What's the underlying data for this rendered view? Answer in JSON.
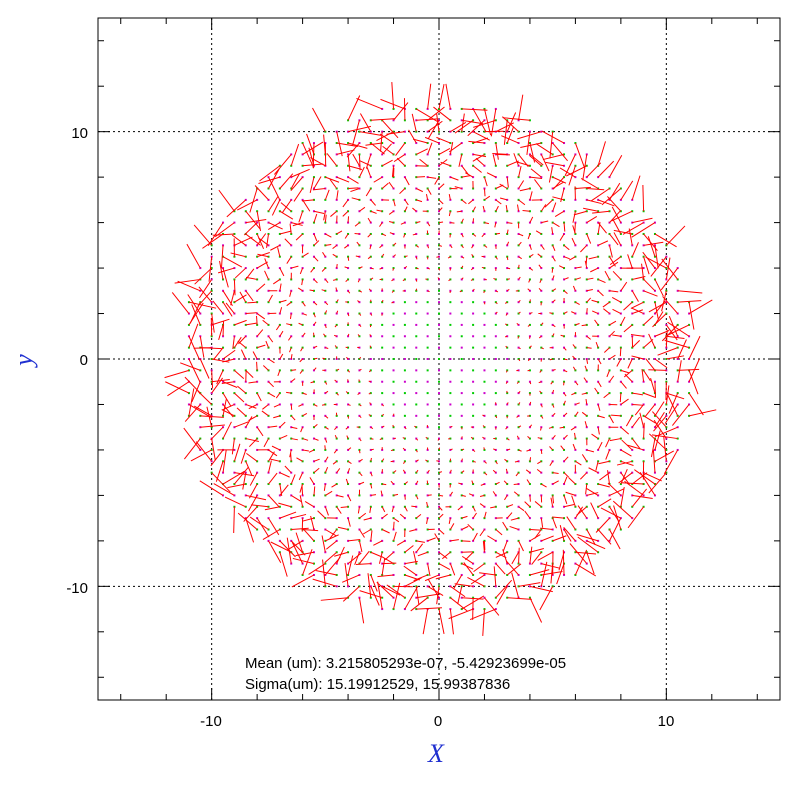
{
  "chart_data": {
    "type": "scatter",
    "subtype": "vector-field",
    "title": "",
    "xlabel": "X",
    "ylabel": "y",
    "xlim": [
      -15,
      15
    ],
    "ylim": [
      -15,
      15
    ],
    "x_ticks": [
      -10,
      0,
      10
    ],
    "y_ticks": [
      -10,
      0,
      10
    ],
    "x_tick_labels": [
      "-10",
      "0",
      "10"
    ],
    "y_tick_labels": [
      "-10",
      "0",
      "10"
    ],
    "grid": "dotted lines at -10, 0, 10",
    "field": {
      "grid_spacing": 0.5,
      "disk_radius": 11.3,
      "description": "Residual displacement vectors on a regular grid inside a circular field; vectors are tiny near the center and grow toward the rim."
    },
    "stats": {
      "mean_line": "Mean (um): 3.215805293e-07, -5.42923699e-05",
      "sigma_line": "Sigma(um): 15.19912529, 15.99387836"
    },
    "colors": {
      "vector": "#ff0000",
      "point_a": "#00cc00",
      "point_b": "#cc00cc",
      "axis_title": "#1f2fd0",
      "grid": "#000000",
      "frame": "#000000"
    }
  }
}
